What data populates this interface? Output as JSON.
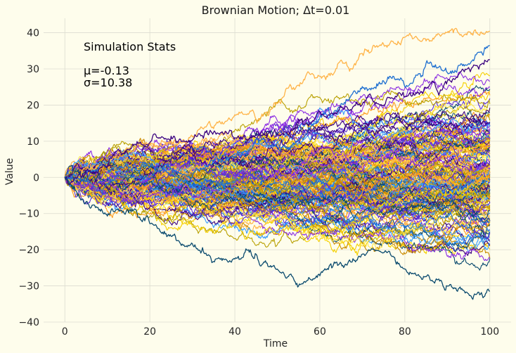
{
  "chart_data": {
    "type": "line",
    "title": "Brownian Motion; Δt=0.01",
    "xlabel": "Time",
    "ylabel": "Value",
    "xlim": [
      -5,
      105
    ],
    "ylim": [
      -40,
      44
    ],
    "xticks": [
      0,
      20,
      40,
      60,
      80,
      100
    ],
    "yticks": [
      -40,
      -30,
      -20,
      -10,
      0,
      10,
      20,
      30,
      40
    ],
    "grid": true,
    "dt": 0.01,
    "n_paths": 200,
    "start_value": 0,
    "end_time": 100,
    "palette": [
      "#0a4a6e",
      "#3a0080",
      "#8a2be2",
      "#1e6fd0",
      "#3399ff",
      "#f5d000",
      "#ffe84d",
      "#ffb347",
      "#ff9a1a",
      "#b8a000",
      "#c98a00",
      "#5a2dd6"
    ],
    "highlighted_paths": [
      {
        "color": "#ffb347",
        "final_value": 40.5,
        "note": "max"
      },
      {
        "color": "#1e6fd0",
        "final_value": 36.5
      },
      {
        "color": "#3a0080",
        "final_value": 32.5
      },
      {
        "color": "#0a4a6e",
        "final_value": -31.5,
        "note": "min"
      }
    ],
    "annotation": {
      "heading": "Simulation Stats",
      "mean_label": "μ=-0.13",
      "std_label": "σ=10.38",
      "mean": -0.13,
      "std": 10.38
    }
  }
}
